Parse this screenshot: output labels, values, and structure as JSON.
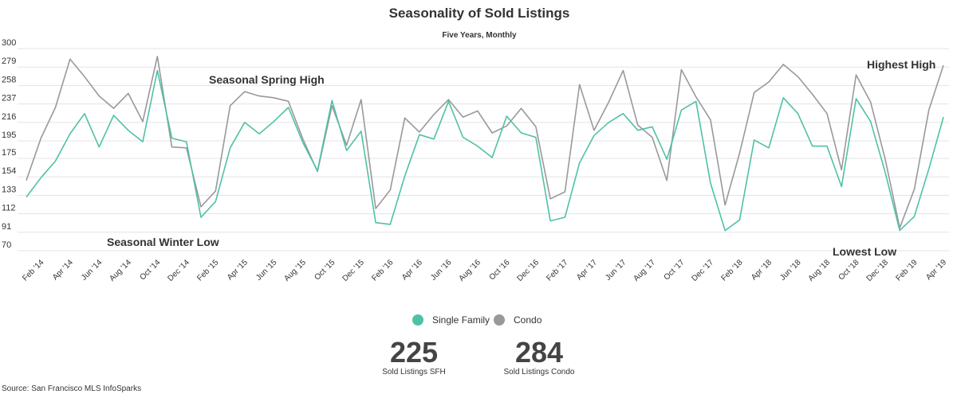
{
  "chart_data": {
    "type": "line",
    "title": "Seasonality of Sold Listings",
    "subtitle": "Five Years, Monthly",
    "ylim": [
      70,
      300
    ],
    "yticks": [
      70,
      91,
      112,
      133,
      154,
      175,
      195,
      216,
      237,
      258,
      279,
      300
    ],
    "grid": true,
    "legend_position": "bottom",
    "x": [
      "Jan '14",
      "Feb '14",
      "Mar '14",
      "Apr '14",
      "May '14",
      "Jun '14",
      "Jul '14",
      "Aug '14",
      "Sep '14",
      "Oct '14",
      "Nov '14",
      "Dec '14",
      "Jan '15",
      "Feb '15",
      "Mar '15",
      "Apr '15",
      "May '15",
      "Jun '15",
      "Jul '15",
      "Aug '15",
      "Sep '15",
      "Oct '15",
      "Nov '15",
      "Dec '15",
      "Jan '16",
      "Feb '16",
      "Mar '16",
      "Apr '16",
      "May '16",
      "Jun '16",
      "Jul '16",
      "Aug '16",
      "Sep '16",
      "Oct '16",
      "Nov '16",
      "Dec '16",
      "Jan '17",
      "Feb '17",
      "Mar '17",
      "Apr '17",
      "May '17",
      "Jun '17",
      "Jul '17",
      "Aug '17",
      "Sep '17",
      "Oct '17",
      "Nov '17",
      "Dec '17",
      "Jan '18",
      "Feb '18",
      "Mar '18",
      "Apr '18",
      "May '18",
      "Jun '18",
      "Jul '18",
      "Aug '18",
      "Sep '18",
      "Oct '18",
      "Nov '18",
      "Dec '18",
      "Jan '19",
      "Feb '19",
      "Mar '19",
      "Apr '19"
    ],
    "xtick_labels": [
      "Feb '14",
      "Apr '14",
      "Jun '14",
      "Aug '14",
      "Oct '14",
      "Dec '14",
      "Feb '15",
      "Apr '15",
      "Jun '15",
      "Aug '15",
      "Oct '15",
      "Dec '15",
      "Feb '16",
      "Apr '16",
      "Jun '16",
      "Aug '16",
      "Oct '16",
      "Dec '16",
      "Feb '17",
      "Apr '17",
      "Jun '17",
      "Aug '17",
      "Oct '17",
      "Dec '17",
      "Feb '18",
      "Apr '18",
      "Jun '18",
      "Aug '18",
      "Oct '18",
      "Dec '18",
      "Feb '19",
      "Apr '19"
    ],
    "series": [
      {
        "name": "Single Family",
        "color": "#4fc1a7",
        "values": [
          131,
          153,
          172,
          203,
          226,
          188,
          224,
          207,
          194,
          275,
          198,
          194,
          108,
          126,
          187,
          216,
          203,
          217,
          233,
          193,
          161,
          241,
          184,
          206,
          102,
          100,
          155,
          202,
          197,
          240,
          199,
          189,
          176,
          223,
          204,
          199,
          104,
          108,
          170,
          201,
          216,
          226,
          207,
          211,
          174,
          230,
          240,
          147,
          93,
          105,
          196,
          187,
          244,
          226,
          189,
          189,
          143,
          243,
          217,
          159,
          93,
          109,
          163,
          222
        ]
      },
      {
        "name": "Condo",
        "color": "#999999",
        "values": [
          150,
          198,
          233,
          288,
          268,
          246,
          232,
          249,
          217,
          291,
          188,
          187,
          120,
          138,
          235,
          251,
          246,
          244,
          240,
          197,
          160,
          235,
          190,
          242,
          118,
          139,
          221,
          205,
          225,
          242,
          222,
          229,
          204,
          212,
          232,
          211,
          129,
          137,
          259,
          207,
          239,
          275,
          213,
          199,
          150,
          276,
          245,
          219,
          122,
          181,
          250,
          262,
          282,
          268,
          248,
          226,
          162,
          270,
          239,
          174,
          96,
          140,
          230,
          281
        ]
      }
    ],
    "annotations": [
      {
        "text": "Seasonal Spring High"
      },
      {
        "text": "Seasonal Winter Low"
      },
      {
        "text": "Highest High"
      },
      {
        "text": "Lowest Low"
      }
    ]
  },
  "kpis": [
    {
      "value": "225",
      "label": "Sold Listings SFH"
    },
    {
      "value": "284",
      "label": "Sold Listings Condo"
    }
  ],
  "source": "Source:  San Francisco MLS InfoSparks"
}
